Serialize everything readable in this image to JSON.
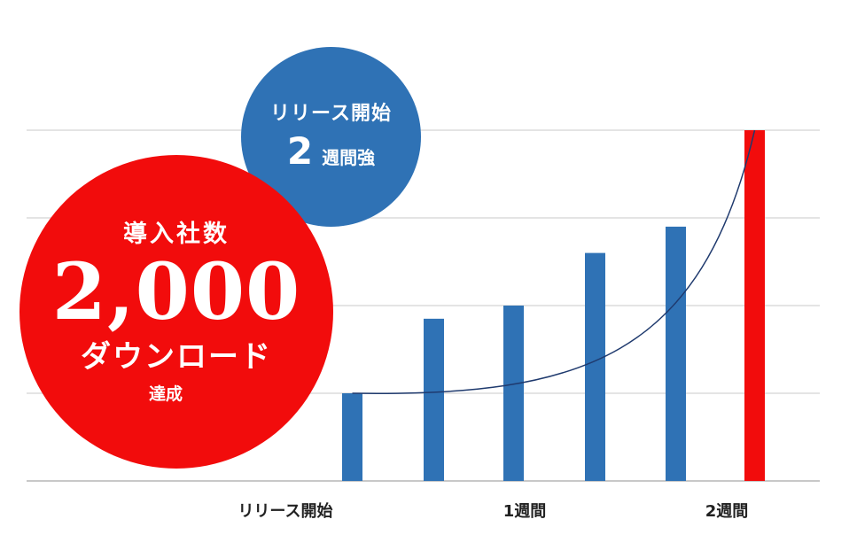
{
  "badges": {
    "downloads": {
      "top": "導入社数",
      "number": "2,000",
      "unit": "ダウンロード",
      "suffix": "達成",
      "color": "#f20c0c"
    },
    "period": {
      "top": "リリース開始",
      "number": "2",
      "unit": "週間強",
      "color": "#2f72b5"
    }
  },
  "chart_data": {
    "type": "bar",
    "x_tick_labels": [
      "リリース開始",
      "1週間",
      "2週間"
    ],
    "values": [
      1,
      1.85,
      2,
      2.6,
      2.9,
      4
    ],
    "ylim": [
      0,
      4
    ],
    "grid": true,
    "colors": [
      "#2f72b5",
      "#2f72b5",
      "#2f72b5",
      "#2f72b5",
      "#2f72b5",
      "#f20c0c"
    ],
    "trendline": true,
    "trendline_color": "#1f3a6e"
  }
}
